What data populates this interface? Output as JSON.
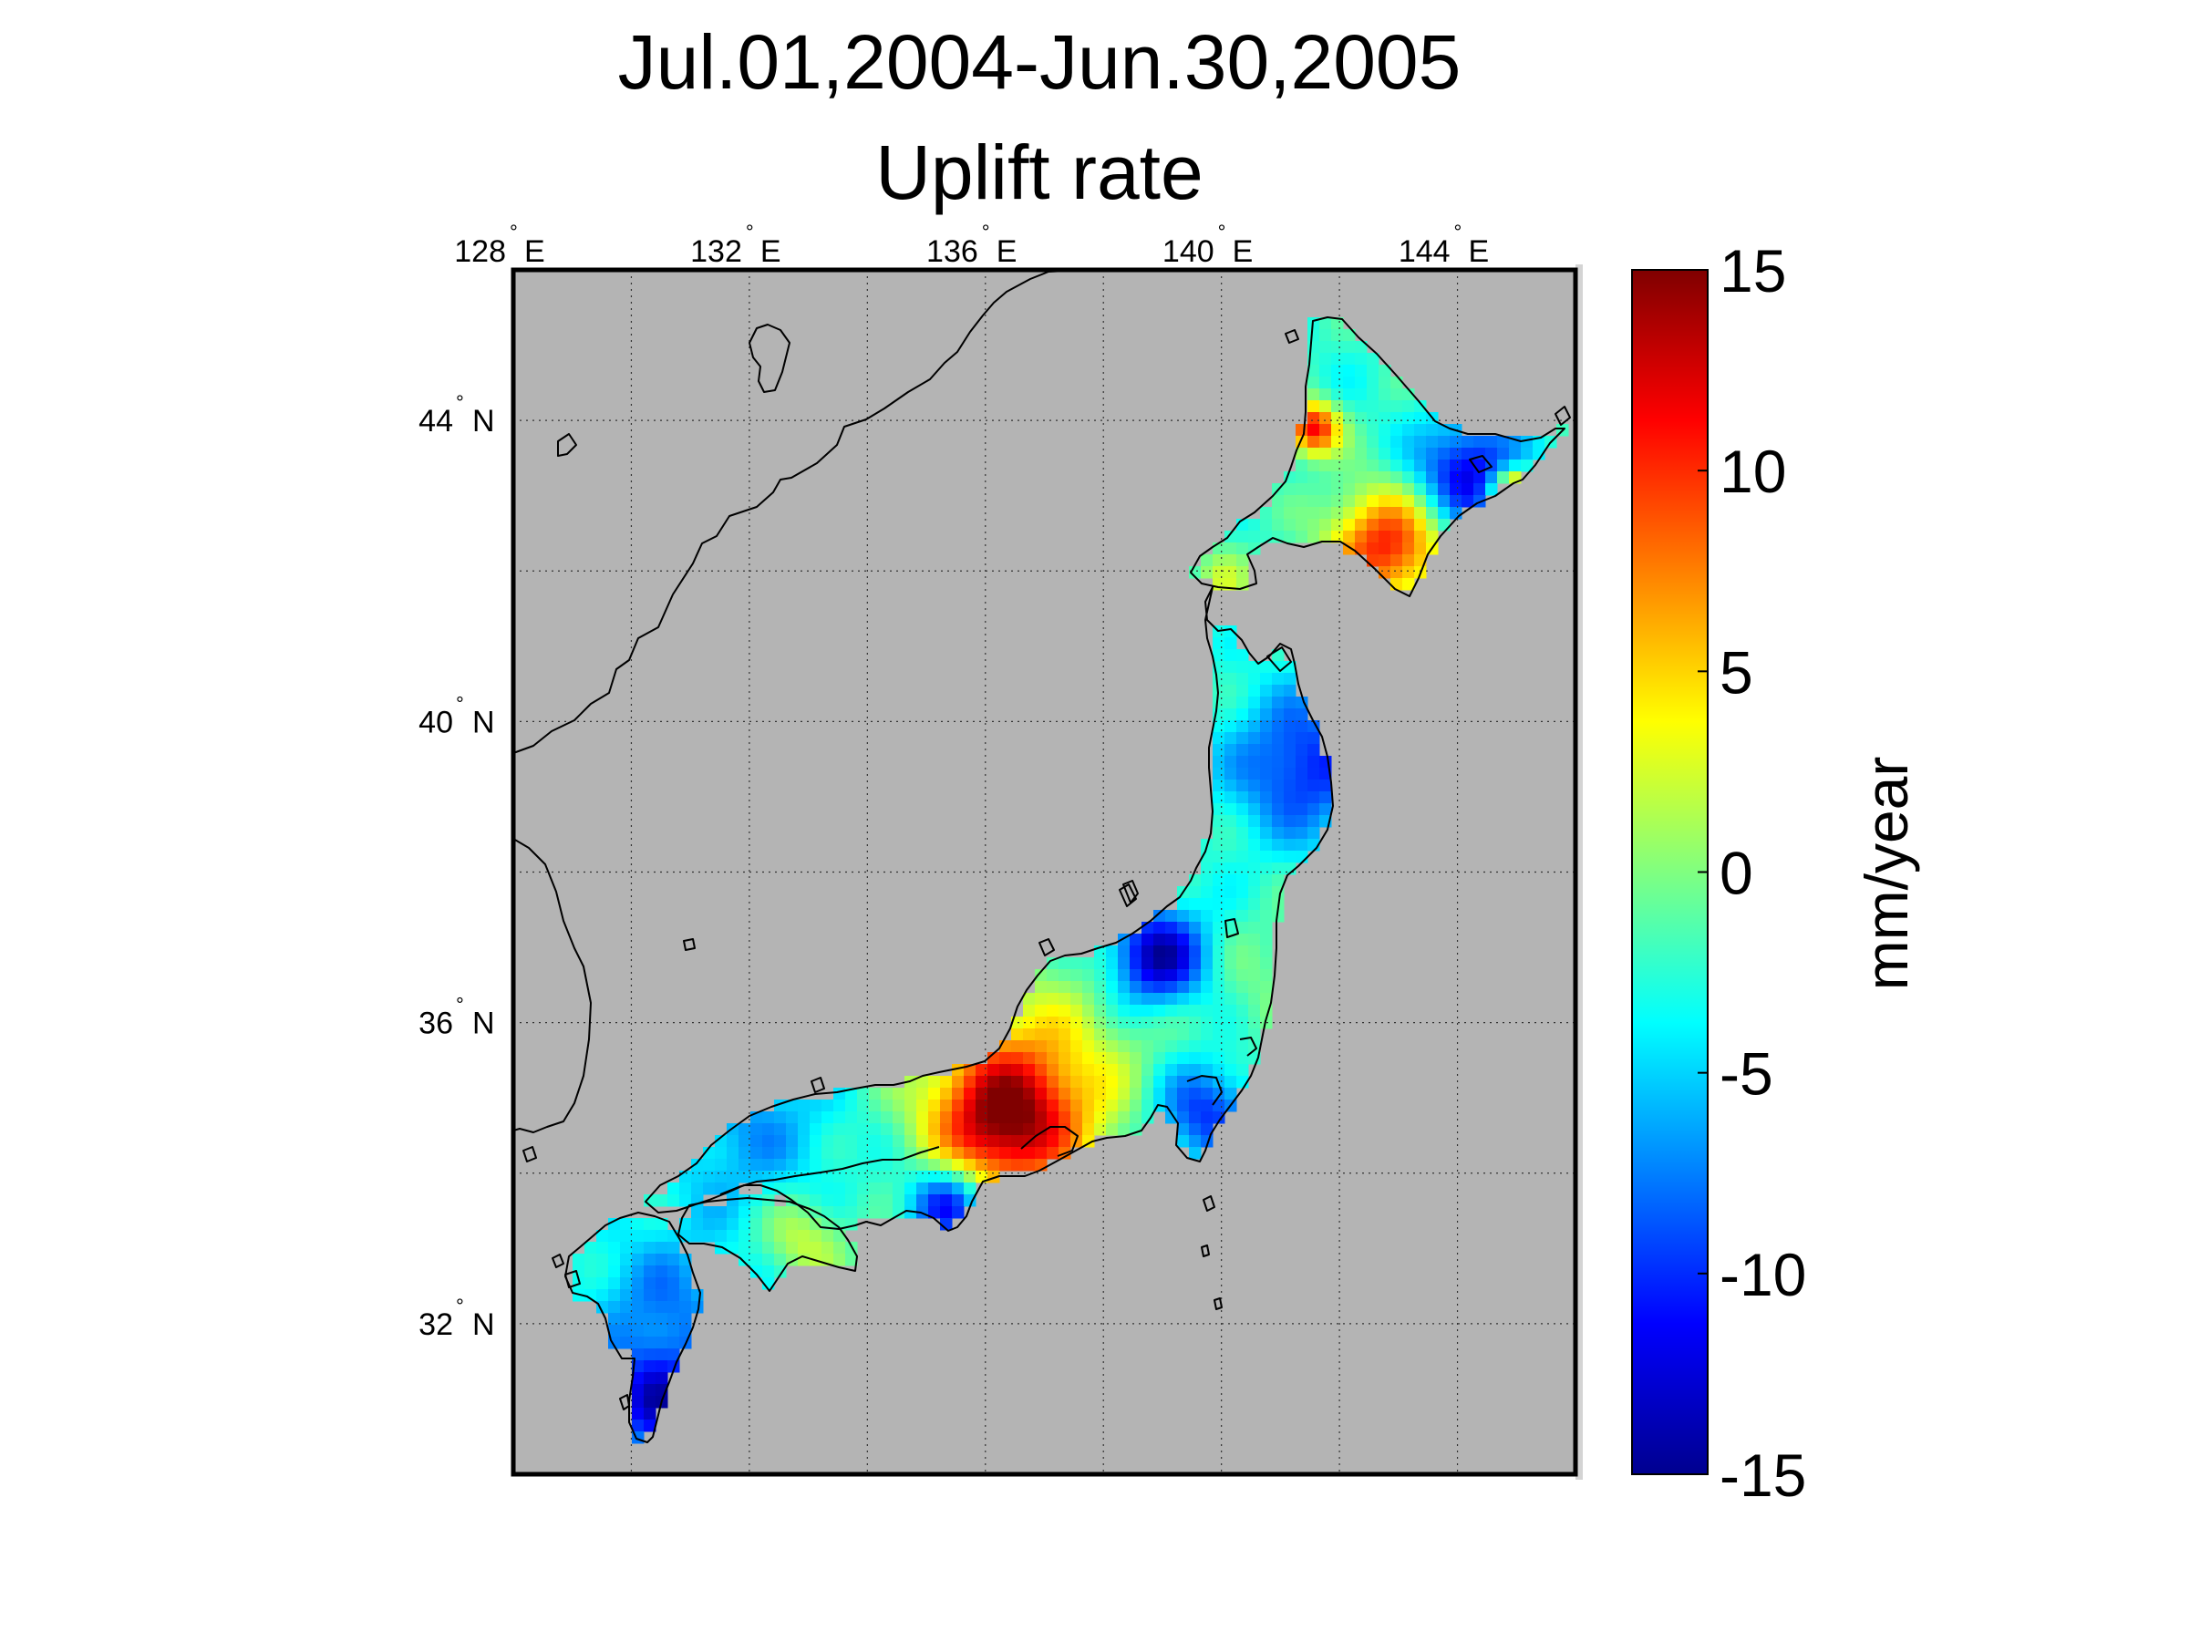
{
  "title": {
    "line1": "Jul.01,2004-Jun.30,2005",
    "line2": "Uplift rate"
  },
  "colorbar": {
    "label": "mm/year",
    "colormap": "jet",
    "min": -15,
    "max": 15,
    "ticks": [
      {
        "value": 15,
        "label": "15"
      },
      {
        "value": 10,
        "label": "10"
      },
      {
        "value": 5,
        "label": "5"
      },
      {
        "value": 0,
        "label": "0"
      },
      {
        "value": -5,
        "label": "-5"
      },
      {
        "value": -10,
        "label": "-10"
      },
      {
        "value": -15,
        "label": "-15"
      }
    ]
  },
  "map": {
    "lon_range": [
      128,
      146
    ],
    "lat_range": [
      30,
      46
    ],
    "background_color": "#b4b4b4",
    "grid": true,
    "lon_ticks": [
      {
        "value": 128,
        "num": "128",
        "hem": "E"
      },
      {
        "value": 132,
        "num": "132",
        "hem": "E"
      },
      {
        "value": 136,
        "num": "136",
        "hem": "E"
      },
      {
        "value": 140,
        "num": "140",
        "hem": "E"
      },
      {
        "value": 144,
        "num": "144",
        "hem": "E"
      }
    ],
    "lat_ticks": [
      {
        "value": 44,
        "num": "44",
        "hem": "N"
      },
      {
        "value": 40,
        "num": "40",
        "hem": "N"
      },
      {
        "value": 36,
        "num": "36",
        "hem": "N"
      },
      {
        "value": 32,
        "num": "32",
        "hem": "N"
      }
    ]
  }
}
